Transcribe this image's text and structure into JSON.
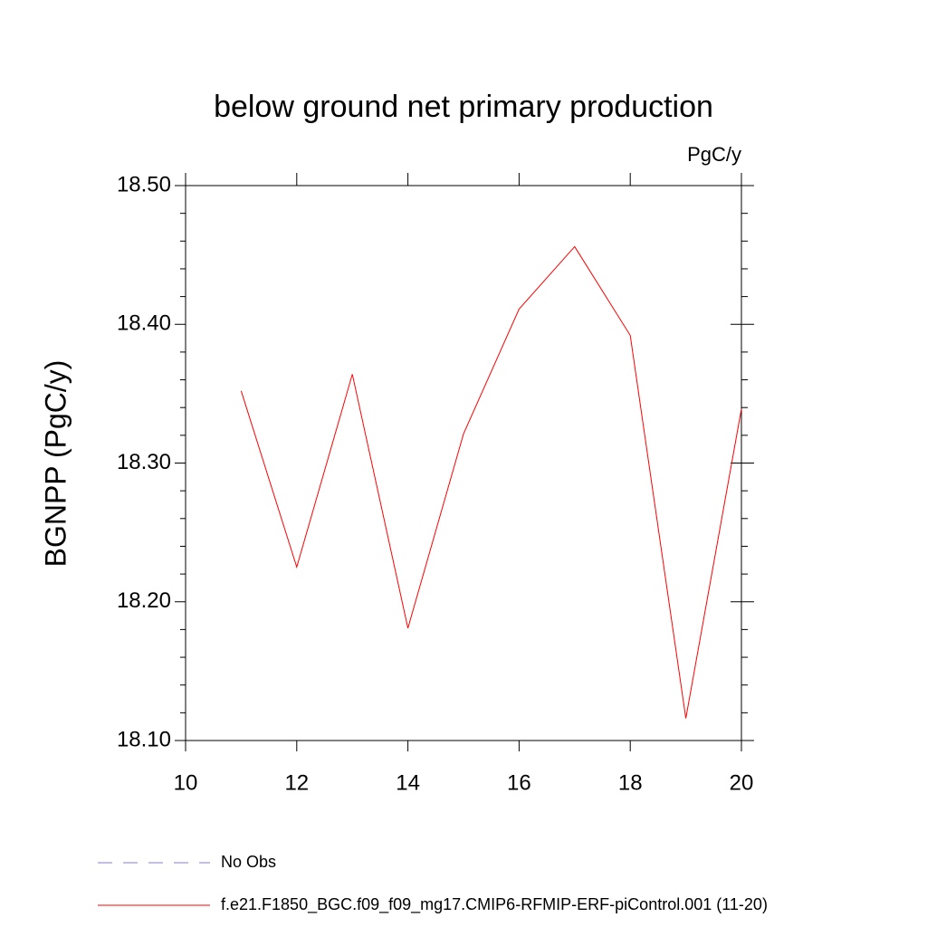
{
  "chart_data": {
    "type": "line",
    "title": "below ground net primary production",
    "units": "PgC/y",
    "y_label": "BGNPP  (PgC/y)",
    "x": [
      11,
      12,
      13,
      14,
      15,
      16,
      17,
      18,
      19,
      20
    ],
    "series": [
      {
        "name": "No Obs",
        "color": "#8a7fc4",
        "dash": true,
        "values": [
          null,
          null,
          null,
          null,
          null,
          null,
          null,
          null,
          null,
          null
        ]
      },
      {
        "name": "f.e21.F1850_BGC.f09_f09_mg17.CMIP6-RFMIP-ERF-piControl.001 (11-20)",
        "color": "#ff0000",
        "dash": false,
        "values": [
          18.352,
          18.225,
          18.364,
          18.181,
          18.321,
          18.411,
          18.456,
          18.392,
          18.116,
          18.339
        ]
      }
    ],
    "xlim": [
      10,
      20
    ],
    "xticks": [
      10,
      12,
      14,
      16,
      18,
      20
    ],
    "ylim": [
      18.1,
      18.5
    ],
    "yticks": [
      {
        "value": 18.1,
        "label": "18.10"
      },
      {
        "value": 18.2,
        "label": "18.20"
      },
      {
        "value": 18.3,
        "label": "18.30"
      },
      {
        "value": 18.4,
        "label": "18.40"
      },
      {
        "value": 18.5,
        "label": "18.50"
      }
    ],
    "y_minor_ticks": [
      18.12,
      18.14,
      18.16,
      18.18,
      18.22,
      18.24,
      18.26,
      18.28,
      18.32,
      18.34,
      18.36,
      18.38,
      18.42,
      18.44,
      18.46,
      18.48
    ]
  }
}
